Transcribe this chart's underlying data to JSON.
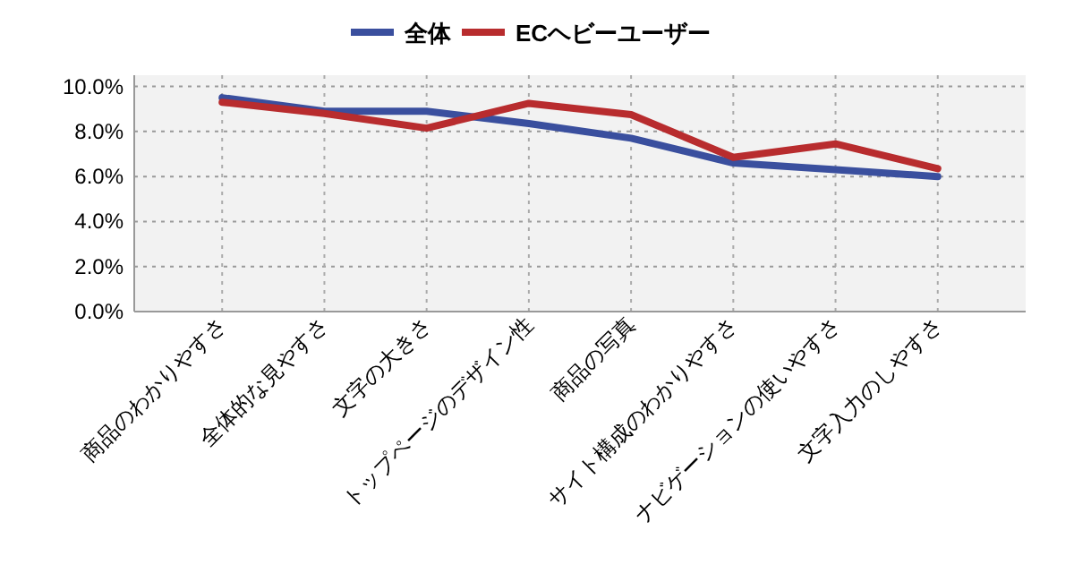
{
  "chart_data": {
    "type": "line",
    "categories": [
      "商品のわかりやすさ",
      "全体的な見やすさ",
      "文字の大きさ",
      "トップページのデザイン性",
      "商品の写真",
      "サイト構成のわかりやすさ",
      "ナビゲーションの使いやすさ",
      "文字入力のしやすさ"
    ],
    "series": [
      {
        "name": "全体",
        "color": "#3a4f9e",
        "values": [
          9.5,
          8.9,
          8.9,
          8.35,
          7.7,
          6.6,
          6.3,
          6.0
        ]
      },
      {
        "name": "ECヘビーユーザー",
        "color": "#b82c2e",
        "values": [
          9.3,
          8.8,
          8.15,
          9.25,
          8.75,
          6.85,
          7.45,
          6.35
        ]
      }
    ],
    "ylim": [
      0,
      10.5
    ],
    "yticks": [
      {
        "value": 0,
        "label": "0.0%"
      },
      {
        "value": 2,
        "label": "2.0%"
      },
      {
        "value": 4,
        "label": "4.0%"
      },
      {
        "value": 6,
        "label": "6.0%"
      },
      {
        "value": 8,
        "label": "8.0%"
      },
      {
        "value": 10,
        "label": "10.0%"
      }
    ],
    "grid": true,
    "legend": "top",
    "marker": "none",
    "line_style": "solid"
  }
}
